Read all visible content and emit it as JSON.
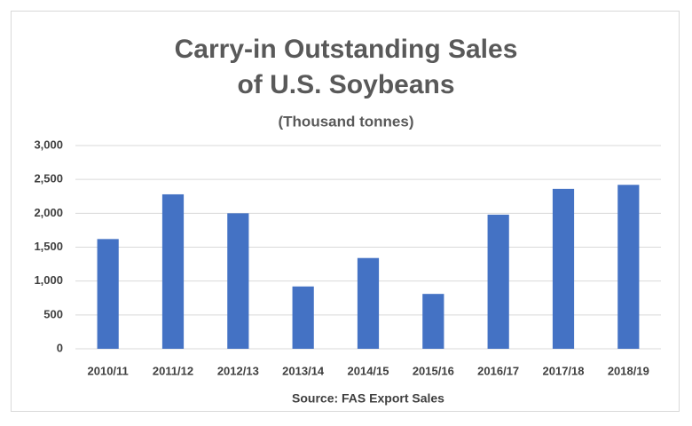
{
  "chart_data": {
    "type": "bar",
    "title": "Carry-in Outstanding Sales of U.S. Soybeans",
    "subtitle": "(Thousand tonnes)",
    "source": "Source: FAS Export Sales",
    "categories": [
      "2010/11",
      "2011/12",
      "2012/13",
      "2013/14",
      "2014/15",
      "2015/16",
      "2016/17",
      "2017/18",
      "2018/19"
    ],
    "values": [
      1620,
      2280,
      2000,
      920,
      1340,
      810,
      1980,
      2360,
      2420
    ],
    "color": "#4472c4",
    "ylim": [
      0,
      3000
    ],
    "yticks": [
      0,
      500,
      {
        "value": 1000,
        "label": "1,000"
      },
      {
        "value": 1500,
        "label": "1,500"
      },
      {
        "value": 2000,
        "label": "2,000"
      },
      {
        "value": 2500,
        "label": "2,500"
      },
      {
        "value": 3000,
        "label": "3,000"
      }
    ],
    "grid": true
  }
}
